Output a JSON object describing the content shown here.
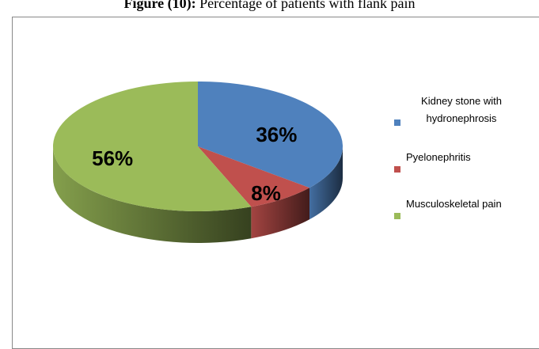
{
  "chart_data": {
    "type": "pie",
    "figure_label": "Figure (10):",
    "title": "Percentage of patients with flank pain",
    "categories": [
      "Kidney stone with hydronephrosis",
      "Pyelonephritis",
      "Musculoskeletal pain"
    ],
    "values": [
      36,
      8,
      56
    ],
    "value_labels": [
      "36%",
      "8%",
      "56%"
    ],
    "colors": [
      "#4f81bd",
      "#c0504d",
      "#9bbb59"
    ],
    "legend": "right"
  }
}
